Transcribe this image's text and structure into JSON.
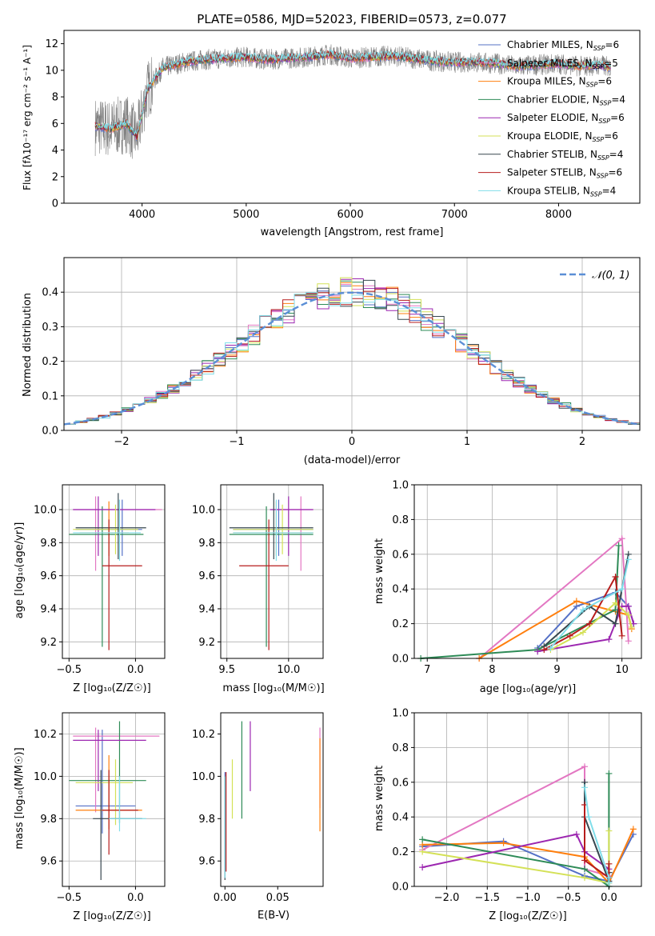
{
  "chart_data": [
    {
      "type": "line",
      "title": "PLATE=0586, MJD=52023, FIBERID=0573, z=0.077",
      "xlabel": "wavelength [Angstrom, rest frame]",
      "ylabel": "Flux [fλ10⁻¹⁷ erg cm⁻² s⁻¹ A⁻¹]",
      "xlim": [
        3250,
        8780
      ],
      "ylim": [
        0,
        13
      ],
      "xticks": [
        4000,
        5000,
        6000,
        7000,
        8000
      ],
      "yticks": [
        0,
        2,
        4,
        6,
        8,
        10,
        12
      ],
      "grid": false,
      "legend": "right",
      "observed_color": "#808080",
      "spectrum_x": [
        3550,
        3700,
        3850,
        3950,
        4050,
        4200,
        4400,
        4600,
        4800,
        5000,
        5200,
        5400,
        5600,
        5800,
        6000,
        6200,
        6400,
        6600,
        6800,
        7000,
        7200,
        7400,
        7600,
        7800,
        8000,
        8200,
        8400,
        8500
      ],
      "spectrum_y": [
        5.8,
        5.6,
        6.0,
        5.0,
        8.5,
        10.2,
        10.6,
        10.8,
        10.9,
        11.0,
        10.8,
        10.9,
        11.0,
        11.2,
        10.9,
        11.0,
        11.1,
        10.9,
        10.7,
        10.6,
        10.6,
        10.5,
        10.3,
        10.4,
        10.5,
        10.3,
        10.4,
        10.2
      ],
      "series": [
        {
          "name": "Chabrier MILES, N",
          "sub": "SSP",
          "suffix": "=6",
          "color": "#5470c6"
        },
        {
          "name": "Salpeter MILES, N",
          "sub": "SSP",
          "suffix": "=5",
          "color": "#e377c2"
        },
        {
          "name": "Kroupa MILES, N",
          "sub": "SSP",
          "suffix": "=6",
          "color": "#ff7f0e"
        },
        {
          "name": "Chabrier ELODIE, N",
          "sub": "SSP",
          "suffix": "=4",
          "color": "#2e8b57"
        },
        {
          "name": "Salpeter ELODIE, N",
          "sub": "SSP",
          "suffix": "=6",
          "color": "#9c27b0"
        },
        {
          "name": "Kroupa ELODIE, N",
          "sub": "SSP",
          "suffix": "=6",
          "color": "#d4e157"
        },
        {
          "name": "Chabrier STELIB, N",
          "sub": "SSP",
          "suffix": "=4",
          "color": "#37474f"
        },
        {
          "name": "Salpeter STELIB, N",
          "sub": "SSP",
          "suffix": "=6",
          "color": "#b71c1c"
        },
        {
          "name": "Kroupa STELIB, N",
          "sub": "SSP",
          "suffix": "=4",
          "color": "#80deea"
        }
      ]
    },
    {
      "type": "bar",
      "xlabel": "(data-model)/error",
      "ylabel": "Normed distribution",
      "xlim": [
        -2.5,
        2.5
      ],
      "ylim": [
        0,
        0.5
      ],
      "xticks": [
        -2,
        -1,
        0,
        1,
        2
      ],
      "xtick_labels": [
        "−2",
        "−1",
        "0",
        "1",
        "2"
      ],
      "yticks": [
        0.0,
        0.1,
        0.2,
        0.3,
        0.4
      ],
      "ytick_labels": [
        "0.0",
        "0.1",
        "0.2",
        "0.3",
        "0.4"
      ],
      "grid": true,
      "legend": "top-right",
      "legend_label": "𝒩(0, 1)",
      "normal_color": "#5b8fd6",
      "bin_width": 0.1,
      "bin_start": -2.5,
      "bin_count": 50
    },
    {
      "type": "scatter",
      "xlabel": "Z [log₁₀(Z/Z☉)]",
      "ylabel": "age  [log₁₀(age/yr)]",
      "xlim": [
        -0.55,
        0.22
      ],
      "ylim": [
        9.1,
        10.15
      ],
      "xticks": [
        -0.5,
        0.0
      ],
      "xtick_labels": [
        "−0.5",
        "0.0"
      ],
      "yticks": [
        9.2,
        9.4,
        9.6,
        9.8,
        10.0
      ],
      "ytick_labels": [
        "9.2",
        "9.4",
        "9.6",
        "9.8",
        "10.0"
      ],
      "grid": true,
      "points": [
        {
          "x": -0.1,
          "xlo": -0.45,
          "xhi": 0.05,
          "y": 9.88,
          "ylo": 9.72,
          "yhi": 10.06
        },
        {
          "x": -0.3,
          "xlo": -0.47,
          "xhi": 0.2,
          "y": 10.0,
          "ylo": 9.63,
          "yhi": 10.08
        },
        {
          "x": -0.2,
          "xlo": -0.42,
          "xhi": -0.05,
          "y": 9.86,
          "ylo": 9.72,
          "yhi": 10.05
        },
        {
          "x": -0.25,
          "xlo": -0.5,
          "xhi": 0.06,
          "y": 9.85,
          "ylo": 9.17,
          "yhi": 10.02
        },
        {
          "x": -0.28,
          "xlo": -0.47,
          "xhi": 0.15,
          "y": 10.0,
          "ylo": 9.72,
          "yhi": 10.08
        },
        {
          "x": -0.15,
          "xlo": -0.47,
          "xhi": 0.02,
          "y": 9.88,
          "ylo": 9.73,
          "yhi": 10.03
        },
        {
          "x": -0.13,
          "xlo": -0.45,
          "xhi": 0.08,
          "y": 9.89,
          "ylo": 9.7,
          "yhi": 10.1
        },
        {
          "x": -0.2,
          "xlo": -0.25,
          "xhi": 0.05,
          "y": 9.66,
          "ylo": 9.15,
          "yhi": 9.94
        },
        {
          "x": -0.12,
          "xlo": -0.47,
          "xhi": 0.04,
          "y": 9.86,
          "ylo": 9.69,
          "yhi": 10.06
        }
      ]
    },
    {
      "type": "scatter",
      "xlabel": "mass [log₁₀(M/M☉)]",
      "xlim": [
        9.45,
        10.28
      ],
      "ylim": [
        9.1,
        10.15
      ],
      "xticks": [
        9.5,
        10.0
      ],
      "xtick_labels": [
        "9.5",
        "10.0"
      ],
      "yticks": [
        9.2,
        9.4,
        9.6,
        9.8,
        10.0
      ],
      "ytick_labels": [
        "9.2",
        "9.4",
        "9.6",
        "9.8",
        "10.0"
      ],
      "grid": true,
      "points": [
        {
          "x": 9.92,
          "xlo": 9.55,
          "xhi": 10.2,
          "y": 9.88,
          "ylo": 9.72,
          "yhi": 10.06
        },
        {
          "x": 10.1,
          "xlo": 9.85,
          "xhi": 10.2,
          "y": 10.0,
          "ylo": 9.63,
          "yhi": 10.08
        },
        {
          "x": 9.9,
          "xlo": 9.55,
          "xhi": 10.2,
          "y": 9.86,
          "ylo": 9.72,
          "yhi": 10.05
        },
        {
          "x": 9.82,
          "xlo": 9.52,
          "xhi": 10.2,
          "y": 9.85,
          "ylo": 9.17,
          "yhi": 10.02
        },
        {
          "x": 10.0,
          "xlo": 9.85,
          "xhi": 10.2,
          "y": 10.0,
          "ylo": 9.72,
          "yhi": 10.08
        },
        {
          "x": 9.95,
          "xlo": 9.55,
          "xhi": 10.2,
          "y": 9.88,
          "ylo": 9.73,
          "yhi": 10.03
        },
        {
          "x": 9.88,
          "xlo": 9.52,
          "xhi": 10.2,
          "y": 9.89,
          "ylo": 9.7,
          "yhi": 10.1
        },
        {
          "x": 9.84,
          "xlo": 9.6,
          "xhi": 10.0,
          "y": 9.66,
          "ylo": 9.15,
          "yhi": 9.94
        },
        {
          "x": 9.9,
          "xlo": 9.55,
          "xhi": 10.2,
          "y": 9.86,
          "ylo": 9.69,
          "yhi": 10.06
        }
      ]
    },
    {
      "type": "line",
      "xlabel": "age  [log₁₀(age/yr)]",
      "ylabel": "mass weight",
      "xlim": [
        6.8,
        10.3
      ],
      "ylim": [
        0,
        1.0
      ],
      "xticks": [
        7,
        8,
        9,
        10
      ],
      "yticks": [
        0.0,
        0.2,
        0.4,
        0.6,
        0.8,
        1.0
      ],
      "ytick_labels": [
        "0.0",
        "0.2",
        "0.4",
        "0.6",
        "0.8",
        "1.0"
      ],
      "grid": true,
      "lines": [
        {
          "x": [
            8.7,
            9.3,
            9.9,
            10.1,
            10.18
          ],
          "y": [
            0.06,
            0.3,
            0.38,
            0.3,
            0.2
          ]
        },
        {
          "x": [
            7.8,
            10.0,
            10.1
          ],
          "y": [
            0.0,
            0.69,
            0.1
          ]
        },
        {
          "x": [
            7.8,
            9.3,
            9.9,
            10.1,
            10.15
          ],
          "y": [
            0.0,
            0.33,
            0.27,
            0.25,
            0.17
          ]
        },
        {
          "x": [
            6.9,
            8.7,
            9.9,
            9.95
          ],
          "y": [
            0.0,
            0.05,
            0.28,
            0.65
          ]
        },
        {
          "x": [
            8.7,
            9.8,
            10.0,
            10.1,
            10.18
          ],
          "y": [
            0.04,
            0.11,
            0.3,
            0.3,
            0.2
          ]
        },
        {
          "x": [
            8.9,
            9.4,
            9.9,
            10.1,
            10.15
          ],
          "y": [
            0.05,
            0.15,
            0.32,
            0.25,
            0.18
          ]
        },
        {
          "x": [
            8.8,
            9.5,
            9.9,
            10.1
          ],
          "y": [
            0.07,
            0.3,
            0.2,
            0.6
          ]
        },
        {
          "x": [
            8.8,
            9.2,
            9.5,
            9.9,
            10.0
          ],
          "y": [
            0.05,
            0.13,
            0.2,
            0.47,
            0.13
          ]
        },
        {
          "x": [
            8.9,
            9.4,
            10.0,
            10.1
          ],
          "y": [
            0.06,
            0.28,
            0.4,
            0.57
          ]
        }
      ]
    },
    {
      "type": "scatter",
      "xlabel": "Z [log₁₀(Z/Z☉)]",
      "ylabel": "mass [log₁₀(M/M☉)]",
      "xlim": [
        -0.55,
        0.22
      ],
      "ylim": [
        9.48,
        10.3
      ],
      "xticks": [
        -0.5,
        0.0
      ],
      "xtick_labels": [
        "−0.5",
        "0.0"
      ],
      "yticks": [
        9.6,
        9.8,
        10.0,
        10.2
      ],
      "ytick_labels": [
        "9.6",
        "9.8",
        "10.0",
        "10.2"
      ],
      "grid": true,
      "points": [
        {
          "x": -0.25,
          "xlo": -0.45,
          "xhi": 0.0,
          "y": 9.86,
          "ylo": 9.73,
          "yhi": 10.22
        },
        {
          "x": -0.3,
          "xlo": -0.47,
          "xhi": 0.18,
          "y": 10.19,
          "ylo": 9.83,
          "yhi": 10.23
        },
        {
          "x": -0.2,
          "xlo": -0.45,
          "xhi": 0.05,
          "y": 9.84,
          "ylo": 9.75,
          "yhi": 10.1
        },
        {
          "x": -0.12,
          "xlo": -0.5,
          "xhi": 0.08,
          "y": 9.98,
          "ylo": 9.78,
          "yhi": 10.26
        },
        {
          "x": -0.28,
          "xlo": -0.47,
          "xhi": 0.08,
          "y": 10.17,
          "ylo": 9.93,
          "yhi": 10.22
        },
        {
          "x": -0.15,
          "xlo": -0.45,
          "xhi": -0.02,
          "y": 9.97,
          "ylo": 9.77,
          "yhi": 10.08
        },
        {
          "x": -0.26,
          "xlo": -0.32,
          "xhi": 0.05,
          "y": 9.8,
          "ylo": 9.51,
          "yhi": 10.03
        },
        {
          "x": -0.2,
          "xlo": -0.25,
          "xhi": 0.02,
          "y": 9.84,
          "ylo": 9.63,
          "yhi": 10.03
        },
        {
          "x": -0.12,
          "xlo": -0.2,
          "xhi": 0.08,
          "y": 9.8,
          "ylo": 9.74,
          "yhi": 10.0
        }
      ]
    },
    {
      "type": "scatter",
      "xlabel": "E(B-V)",
      "xlim": [
        -0.004,
        0.093
      ],
      "ylim": [
        9.48,
        10.3
      ],
      "xticks": [
        0.0,
        0.05
      ],
      "xtick_labels": [
        "0.00",
        "0.05"
      ],
      "yticks": [
        9.6,
        9.8,
        10.0,
        10.2
      ],
      "ytick_labels": [
        "9.6",
        "9.8",
        "10.0",
        "10.2"
      ],
      "grid": false,
      "points": [
        {
          "x": 0.0,
          "y": 9.86,
          "ylo": 9.55,
          "yhi": 10.02
        },
        {
          "x": 0.09,
          "y": 10.15,
          "ylo": 9.85,
          "yhi": 10.23
        },
        {
          "x": 0.09,
          "y": 9.9,
          "ylo": 9.74,
          "yhi": 10.18
        },
        {
          "x": 0.016,
          "y": 10.0,
          "ylo": 9.8,
          "yhi": 10.26
        },
        {
          "x": 0.024,
          "y": 10.1,
          "ylo": 9.93,
          "yhi": 10.26
        },
        {
          "x": 0.007,
          "y": 9.95,
          "ylo": 9.8,
          "yhi": 10.08
        },
        {
          "x": 0.0,
          "y": 9.7,
          "ylo": 9.51,
          "yhi": 10.0
        },
        {
          "x": 0.001,
          "y": 9.8,
          "ylo": 9.55,
          "yhi": 10.02
        },
        {
          "x": 0.0,
          "y": 9.75,
          "ylo": 9.52,
          "yhi": 10.0
        }
      ]
    },
    {
      "type": "line",
      "xlabel": "Z [log₁₀(Z/Z☉)]",
      "ylabel": "mass weight",
      "xlim": [
        -2.4,
        0.4
      ],
      "ylim": [
        0,
        1.0
      ],
      "xticks": [
        -2.0,
        -1.5,
        -1.0,
        -0.5,
        0.0
      ],
      "xtick_labels": [
        "−2.0",
        "−1.5",
        "−1.0",
        "−0.5",
        "0.0"
      ],
      "yticks": [
        0.0,
        0.2,
        0.4,
        0.6,
        0.8,
        1.0
      ],
      "ytick_labels": [
        "0.0",
        "0.2",
        "0.4",
        "0.6",
        "0.8",
        "1.0"
      ],
      "grid": true,
      "lines": [
        {
          "x": [
            -2.3,
            -1.3,
            -0.3,
            0.0,
            0.3
          ],
          "y": [
            0.23,
            0.26,
            0.06,
            0.03,
            0.3
          ]
        },
        {
          "x": [
            -2.3,
            -0.3,
            -0.3,
            0.0
          ],
          "y": [
            0.21,
            0.69,
            0.1,
            0.06
          ]
        },
        {
          "x": [
            -2.3,
            -1.3,
            -0.3,
            0.0,
            0.3
          ],
          "y": [
            0.24,
            0.25,
            0.17,
            0.02,
            0.33
          ]
        },
        {
          "x": [
            -2.3,
            -0.3,
            0.0,
            0.0
          ],
          "y": [
            0.27,
            0.1,
            0.0,
            0.65
          ]
        },
        {
          "x": [
            -2.3,
            -0.4,
            -0.3,
            0.0
          ],
          "y": [
            0.11,
            0.3,
            0.2,
            0.1
          ]
        },
        {
          "x": [
            -2.3,
            -0.3,
            0.0,
            0.0
          ],
          "y": [
            0.2,
            0.05,
            0.02,
            0.32
          ]
        },
        {
          "x": [
            -0.3,
            -0.3,
            0.0,
            0.0
          ],
          "y": [
            0.6,
            0.4,
            0.03,
            0.08
          ]
        },
        {
          "x": [
            -0.3,
            -0.3,
            0.0,
            0.0
          ],
          "y": [
            0.47,
            0.15,
            0.05,
            0.13
          ]
        },
        {
          "x": [
            -0.3,
            -0.25,
            0.0,
            0.0
          ],
          "y": [
            0.57,
            0.4,
            0.05,
            0.02
          ]
        }
      ]
    }
  ]
}
